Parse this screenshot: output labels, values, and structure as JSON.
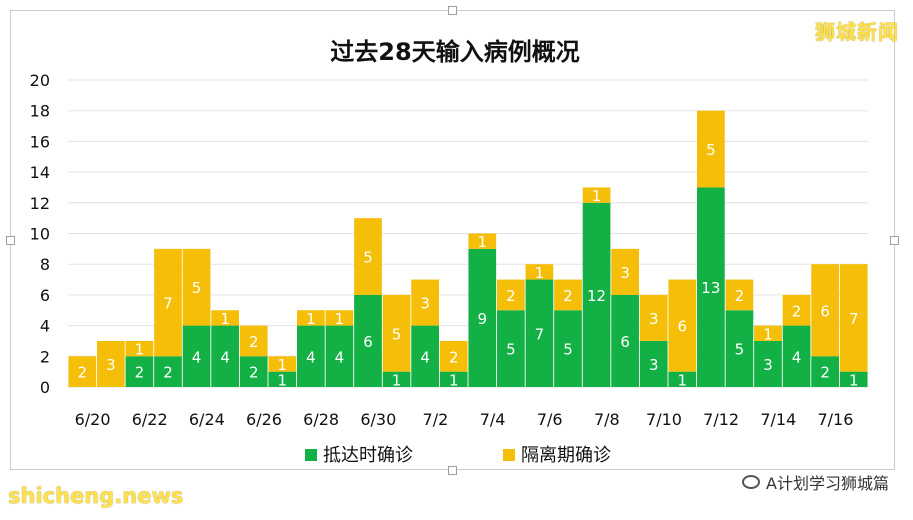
{
  "watermarks": {
    "top_right": "狮城新闻",
    "bottom_left": "shicheng.news",
    "social": "A计划学习狮城篇"
  },
  "chart_data": {
    "type": "bar",
    "stacked": true,
    "title": "过去28天输入病例概况",
    "categories": [
      "6/20",
      "6/21",
      "6/22",
      "6/23",
      "6/24",
      "6/25",
      "6/26",
      "6/27",
      "6/28",
      "6/29",
      "6/30",
      "7/1",
      "7/2",
      "7/3",
      "7/4",
      "7/5",
      "7/6",
      "7/7",
      "7/8",
      "7/9",
      "7/10",
      "7/11",
      "7/12",
      "7/13",
      "7/14",
      "7/15",
      "7/16",
      "7/17"
    ],
    "tick_labels_shown": [
      "6/20",
      "6/22",
      "6/24",
      "6/26",
      "6/28",
      "6/30",
      "7/2",
      "7/4",
      "7/6",
      "7/8",
      "7/10",
      "7/12",
      "7/14",
      "7/16"
    ],
    "series": [
      {
        "name": "抵达时确诊",
        "color": "#12b045",
        "values": [
          0,
          0,
          2,
          2,
          4,
          4,
          2,
          1,
          4,
          4,
          6,
          1,
          4,
          1,
          9,
          5,
          7,
          5,
          12,
          6,
          3,
          1,
          13,
          5,
          3,
          4,
          2,
          1
        ]
      },
      {
        "name": "隔离期确诊",
        "color": "#f5be08",
        "values": [
          2,
          3,
          1,
          7,
          5,
          1,
          2,
          1,
          1,
          1,
          5,
          5,
          3,
          2,
          1,
          2,
          1,
          2,
          1,
          3,
          3,
          6,
          5,
          2,
          1,
          2,
          6,
          7
        ]
      }
    ],
    "ylim": [
      0,
      20
    ],
    "yticks": [
      0,
      2,
      4,
      6,
      8,
      10,
      12,
      14,
      16,
      18,
      20
    ],
    "grid": true,
    "legend_position": "bottom"
  }
}
